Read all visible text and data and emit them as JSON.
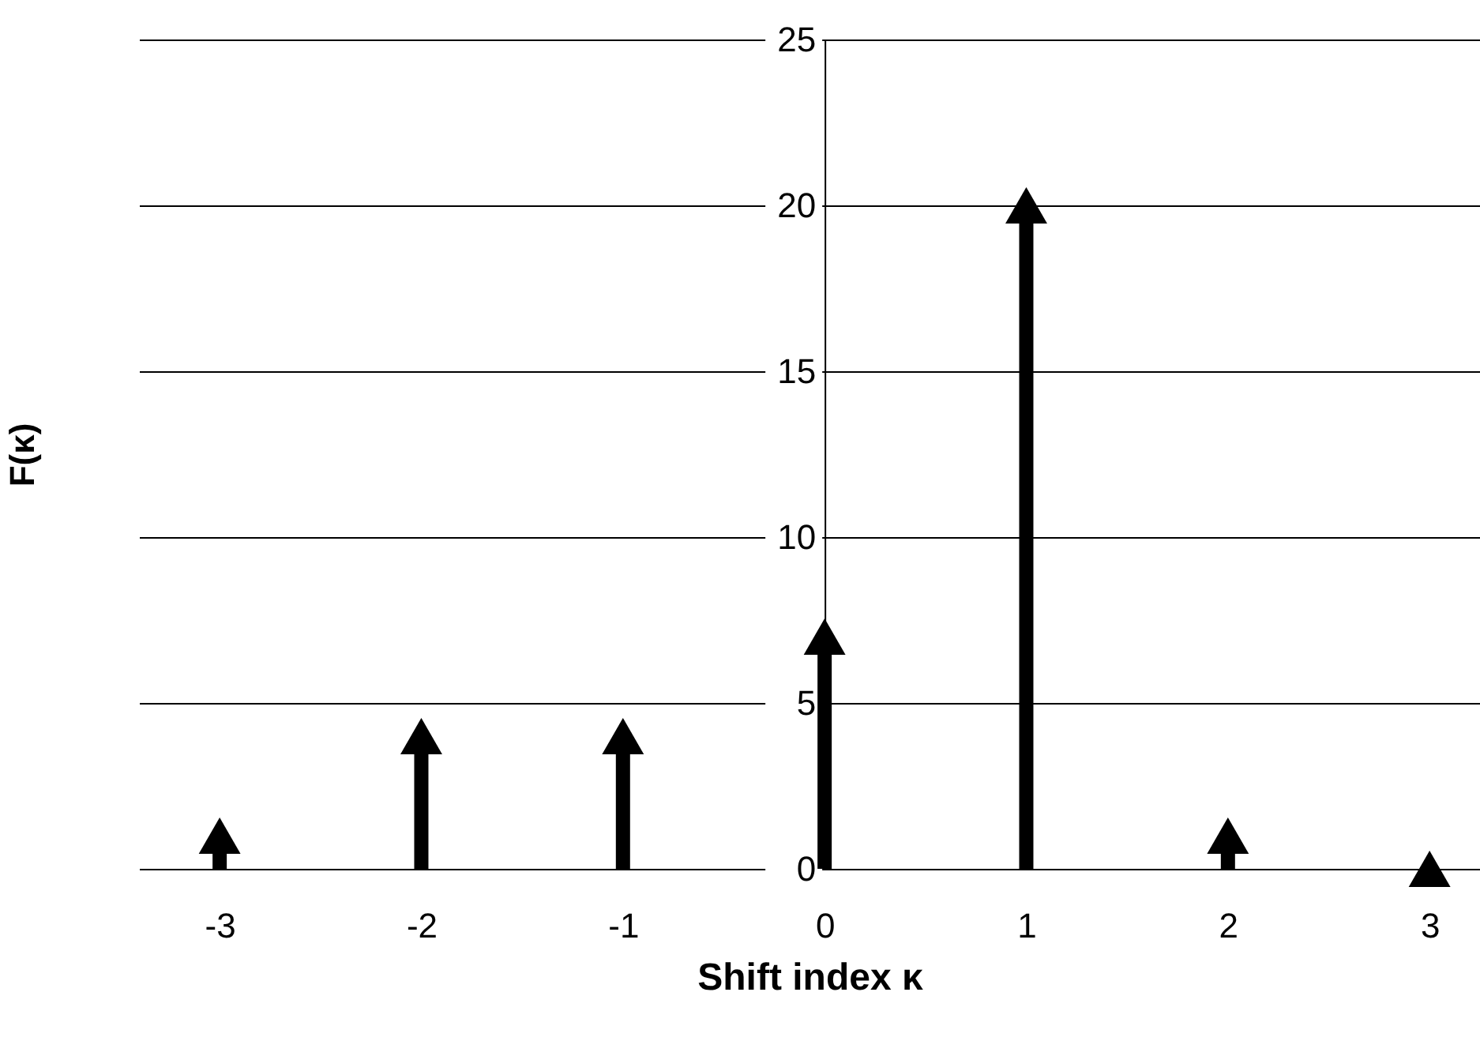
{
  "chart_data": {
    "type": "lollipop",
    "xlabel": "Shift index  κ",
    "ylabel": "F(κ)",
    "x": [
      -3,
      -2,
      -1,
      0,
      1,
      2,
      3
    ],
    "series": [
      {
        "color": "#000000",
        "values": [
          1,
          4,
          4,
          7,
          20,
          1,
          0
        ]
      }
    ],
    "xlim": [
      -3.4,
      3.25
    ],
    "xticks": [
      -3,
      -2,
      -1,
      0,
      1,
      2,
      3
    ],
    "ylim": [
      0,
      25
    ],
    "yticks": [
      0,
      5,
      10,
      15,
      20,
      25
    ],
    "grid": "y",
    "marker": "triangle"
  }
}
